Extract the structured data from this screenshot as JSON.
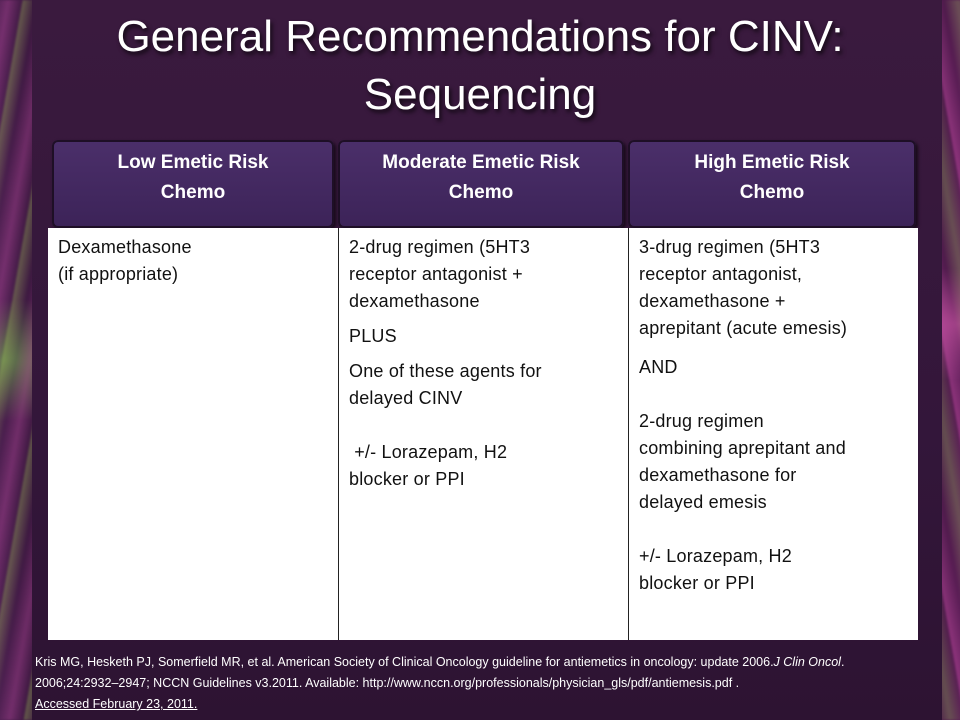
{
  "slide": {
    "title_line1": "General Recommendations for CINV:",
    "title_line2": "Sequencing"
  },
  "table": {
    "headers": [
      {
        "line1": "Low Emetic Risk",
        "line2": "Chemo"
      },
      {
        "line1": "Moderate Emetic Risk",
        "line2": "Chemo"
      },
      {
        "line1": "High Emetic Risk",
        "line2": "Chemo"
      }
    ],
    "low": {
      "l1": "Dexamethasone",
      "l2": "(if appropriate)"
    },
    "moderate": {
      "l1": "2-drug regimen (5HT3",
      "l2": "receptor antagonist +",
      "l3": "dexamethasone",
      "l4": "PLUS",
      "l5": "One of these agents for",
      "l6": "delayed CINV",
      "l7": " +/- Lorazepam, H2",
      "l8": "blocker or PPI"
    },
    "high": {
      "l1": "3-drug regimen (5HT3",
      "l2": "receptor antagonist,",
      "l3": "dexamethasone +",
      "l4": "aprepitant (acute emesis)",
      "l5": "AND",
      "l6": "2-drug regimen",
      "l7": "combining aprepitant and",
      "l8": "dexamethasone for",
      "l9": "delayed emesis",
      "l10": "+/- Lorazepam, H2",
      "l11": "blocker or PPI"
    }
  },
  "reference": {
    "p1": "Kris MG, Hesketh PJ, Somerfield MR, et al. American Society of Clinical Oncology guideline for antiemetics in oncology: update 2006.",
    "journal_a": "J Clin",
    "journal_b": "Oncol",
    "p2": ". 2006;24:2932–2947;  NCCN Guidelines v3.2011. Available: http://www.nccn.org/professionals/physician_gls/pdf/antiemesis.pdf  .",
    "accessed": "Accessed February 23, 2011."
  },
  "colors": {
    "background": "#2b1030",
    "header_fill": "#4b2f6a",
    "table_body": "#ffffff"
  }
}
